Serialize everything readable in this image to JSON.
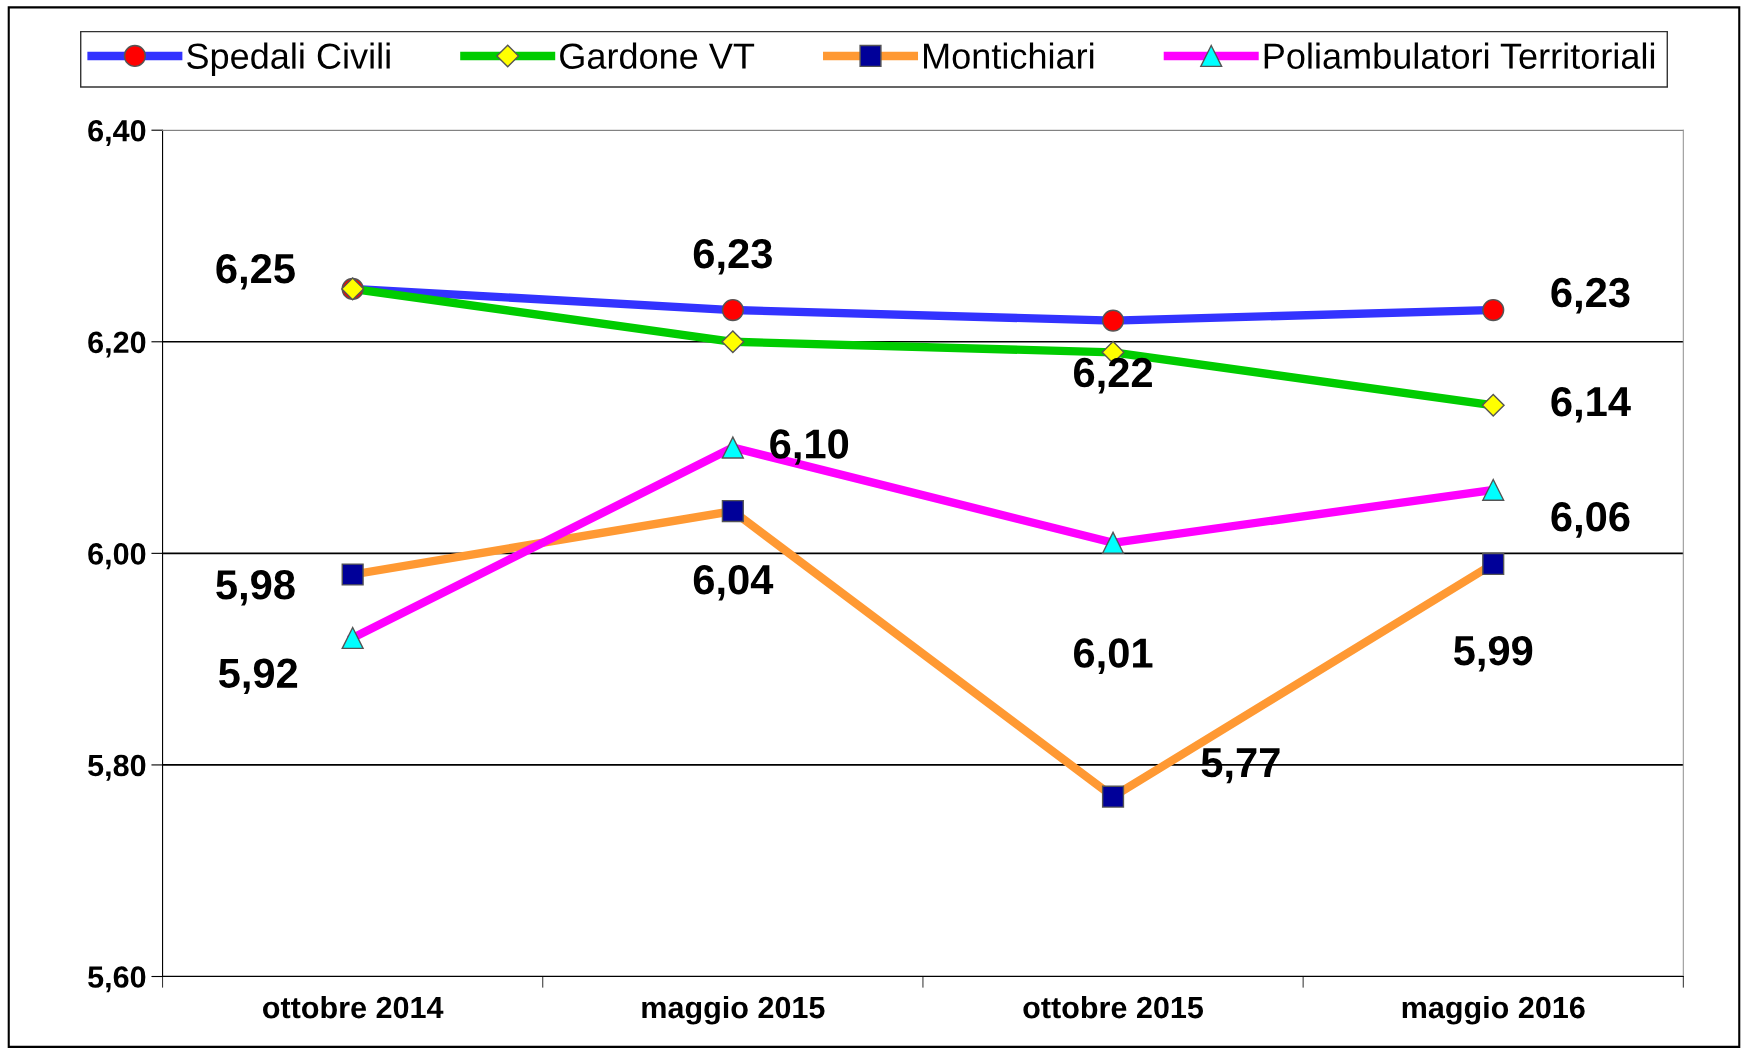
{
  "chart_data": {
    "type": "line",
    "categories": [
      "ottobre 2014",
      "maggio 2015",
      "ottobre 2015",
      "maggio 2016"
    ],
    "series": [
      {
        "name": "Spedali Civili",
        "color": "#3333ff",
        "marker": "circle",
        "colors": [
          "#ff0000",
          "#ff0000",
          "#ff0000",
          "#ff0000"
        ],
        "values": [
          6.25,
          6.23,
          6.22,
          6.23
        ],
        "value_labels": [
          "6,25",
          "6,23",
          "6,22",
          "6,23"
        ]
      },
      {
        "name": "Gardone VT",
        "color": "#00cc00",
        "marker": "diamond",
        "colors": [
          "#ffff00",
          "#ffff00",
          "#ffff00",
          "#ffff00"
        ],
        "values": [
          6.25,
          6.2,
          6.19,
          6.14
        ],
        "value_labels": [
          null,
          null,
          null,
          "6,14"
        ]
      },
      {
        "name": "Montichiari",
        "color": "#ff9933",
        "marker": "square",
        "colors": [
          "#000099",
          "#000099",
          "#000099",
          "#000099"
        ],
        "values": [
          5.98,
          6.04,
          5.77,
          5.99
        ],
        "value_labels": [
          "5,98",
          "6,04",
          "5,77",
          "5,99"
        ]
      },
      {
        "name": "Poliambulatori Territoriali",
        "color": "#ff00ff",
        "marker": "triangle",
        "colors": [
          "#00ffff",
          "#00ffff",
          "#00ffff",
          "#00ffff"
        ],
        "values": [
          5.92,
          6.1,
          6.01,
          6.06
        ],
        "value_labels": [
          "5,92",
          "6,10",
          "6,01",
          "6,06"
        ]
      }
    ],
    "ylim": [
      5.6,
      6.4
    ],
    "yticks": [
      {
        "value": 5.6,
        "label": "5,60"
      },
      {
        "value": 5.8,
        "label": "5,80"
      },
      {
        "value": 6.0,
        "label": "6,00"
      },
      {
        "value": 6.2,
        "label": "6,20"
      },
      {
        "value": 6.4,
        "label": "6,40"
      }
    ],
    "grid": "y",
    "legend": "top",
    "line_style": "solid"
  }
}
